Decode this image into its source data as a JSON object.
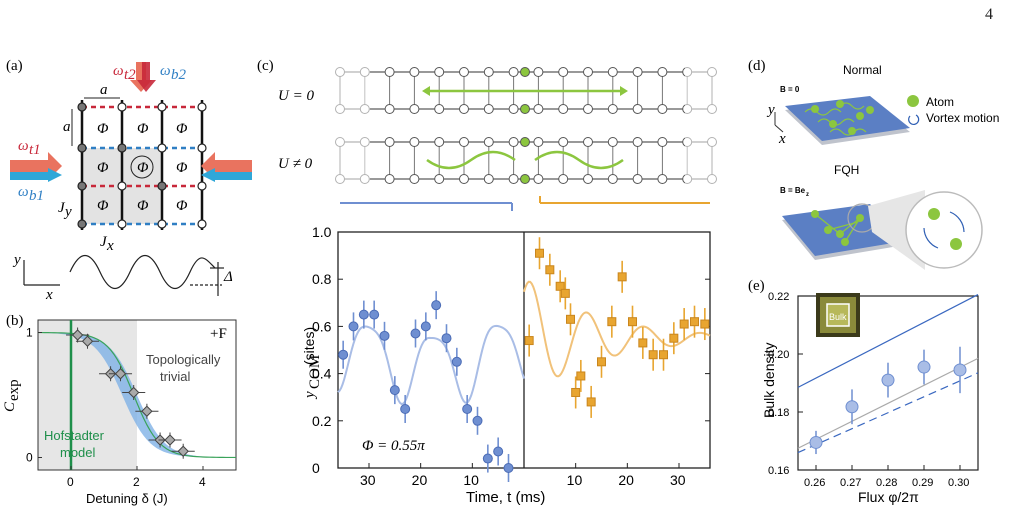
{
  "page_number": "4",
  "panels": {
    "a": {
      "label": "(a)",
      "omega_t2": "ω",
      "omega_t2_sub": "t2",
      "omega_b2": "ω",
      "omega_b2_sub": "b2",
      "omega_t1": "ω",
      "omega_t1_sub": "t1",
      "omega_b1": "ω",
      "omega_b1_sub": "b1",
      "a_label": "a",
      "phi": "Φ",
      "jy": "J",
      "jy_sub": "y",
      "jx": "J",
      "jx_sub": "x",
      "axis_y": "y",
      "axis_x": "x",
      "delta": "Δ",
      "colors": {
        "red": "#c8283a",
        "blue": "#2f7fc4",
        "salmon": "#e9735f",
        "cyan": "#2fa7d8"
      }
    },
    "b": {
      "label": "(b)",
      "corner": "+F",
      "region_label_1": "Topologically",
      "region_label_2": "trivial",
      "model_label_1": "Hofstadter",
      "model_label_2": "model",
      "ylabel": "C",
      "ylabel_sub": "exp",
      "xlabel": "Detuning δ (J)"
    },
    "c": {
      "label": "(c)",
      "u0": "U = 0",
      "unot0": "U ≠ 0",
      "phi_text": "Φ = 0.55π",
      "ylabel": "y",
      "ylabel_sub": "COM",
      "ylabel_unit": " (sites)",
      "xlabel": "Time, t (ms)",
      "colors": {
        "blue": "#6f8fd1",
        "orange": "#e8a530",
        "green": "#8cc63f"
      }
    },
    "d": {
      "label": "(d)",
      "normal": "Normal",
      "b0": "B = 0",
      "atom": "Atom",
      "vortex": "Vortex motion",
      "fqh": "FQH",
      "bbez": "B = Be",
      "bbez_sub": "z",
      "axis_y": "y",
      "axis_x": "x"
    },
    "e": {
      "label": "(e)",
      "inset": "Bulk",
      "ylabel": "Bulk density",
      "xlabel": "Flux φ/2π"
    }
  },
  "chart_data": [
    {
      "type": "scatter",
      "panel": "b",
      "title": "",
      "xlabel": "Detuning δ (J)",
      "ylabel": "C exp",
      "xlim": [
        -1,
        5
      ],
      "ylim": [
        -0.1,
        1.1
      ],
      "xticks": [
        0,
        2,
        4
      ],
      "yticks": [
        0,
        1
      ],
      "series": [
        {
          "name": "",
          "x": [
            0.2,
            0.5,
            1.2,
            1.5,
            1.9,
            2.3,
            2.7,
            3.0,
            3.4
          ],
          "y": [
            0.98,
            0.93,
            0.67,
            0.67,
            0.52,
            0.37,
            0.14,
            0.14,
            0.05
          ]
        }
      ],
      "grid": false
    },
    {
      "type": "scatter",
      "panel": "c",
      "title": "",
      "xlabel": "Time, t (ms)",
      "ylabel": "y COM (sites)",
      "ylim": [
        0,
        1.0
      ],
      "yticks": [
        0,
        0.2,
        0.4,
        0.6,
        0.8,
        1.0
      ],
      "xticks_left": [
        30,
        20,
        10
      ],
      "xticks_right": [
        10,
        20,
        30
      ],
      "series": [
        {
          "name": "",
          "t": [
            35,
            33,
            31,
            29,
            27,
            25,
            23,
            21,
            19,
            17,
            15,
            13,
            11,
            9,
            7,
            5,
            3
          ],
          "y": [
            0.48,
            0.6,
            0.65,
            0.65,
            0.56,
            0.33,
            0.25,
            0.57,
            0.6,
            0.69,
            0.55,
            0.45,
            0.25,
            0.2,
            0.04,
            0.07,
            0.0
          ]
        },
        {
          "name": "",
          "t": [
            1,
            3,
            5,
            7,
            8,
            9,
            10,
            11,
            13,
            15,
            17,
            19,
            21,
            23,
            25,
            27,
            29,
            31,
            33,
            35
          ],
          "y": [
            0.54,
            0.91,
            0.84,
            0.77,
            0.74,
            0.63,
            0.32,
            0.39,
            0.28,
            0.45,
            0.62,
            0.81,
            0.62,
            0.53,
            0.48,
            0.48,
            0.55,
            0.61,
            0.62,
            0.61
          ]
        }
      ],
      "grid": false
    },
    {
      "type": "scatter",
      "panel": "e",
      "title": "",
      "xlabel": "Flux φ/2π",
      "ylabel": "Bulk density",
      "xlim": [
        0.255,
        0.305
      ],
      "ylim": [
        0.16,
        0.22
      ],
      "xticks": [
        0.26,
        0.27,
        0.28,
        0.29,
        0.3
      ],
      "yticks": [
        0.16,
        0.18,
        0.2,
        0.22
      ],
      "series": [
        {
          "name": "",
          "x": [
            0.26,
            0.27,
            0.28,
            0.29,
            0.3
          ],
          "y": [
            0.1695,
            0.1818,
            0.191,
            0.1955,
            0.1945
          ]
        }
      ],
      "grid": false
    }
  ]
}
